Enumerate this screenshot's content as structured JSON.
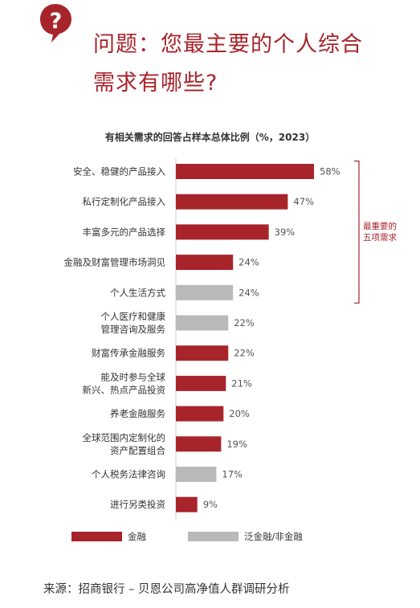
{
  "question": {
    "line1": "问题：您最主要的个人综合",
    "line2": "需求有哪些?",
    "icon": "question-bubble-icon"
  },
  "chart_data": {
    "type": "bar",
    "orientation": "horizontal",
    "title": "有相关需求的回答占样本总体比例（%，2023）",
    "categories": [
      "安全、稳健的产品接入",
      "私行定制化产品接入",
      "丰富多元的产品选择",
      "金融及财富管理市场洞见",
      "个人生活方式",
      "个人医疗和健康\n管理咨询及服务",
      "财富传承金融服务",
      "能及时参与全球\n新兴、热点产品投资",
      "养老金融服务",
      "全球范围内定制化的\n资产配置组合",
      "个人税务法律咨询",
      "进行另类投资"
    ],
    "values": [
      58,
      47,
      39,
      24,
      24,
      22,
      22,
      21,
      20,
      19,
      17,
      9
    ],
    "value_suffix": "%",
    "groups": [
      "financial",
      "financial",
      "financial",
      "financial",
      "non_financial",
      "non_financial",
      "financial",
      "financial",
      "financial",
      "financial",
      "non_financial",
      "financial"
    ],
    "colors": {
      "financial": "#a8242b",
      "non_financial": "#b9b9b9"
    },
    "legend": [
      {
        "key": "financial",
        "label": "金融"
      },
      {
        "key": "non_financial",
        "label": "泛金融/非金融"
      }
    ],
    "legend_placement": "bottom",
    "bracket_annotation": {
      "label": [
        "最重要的",
        "五项需求"
      ],
      "first_index": 0,
      "last_index": 4
    },
    "xlim": [
      0,
      58
    ],
    "grid": false
  },
  "source": "来源：招商银行 – 贝恩公司高净值人群调研分析"
}
